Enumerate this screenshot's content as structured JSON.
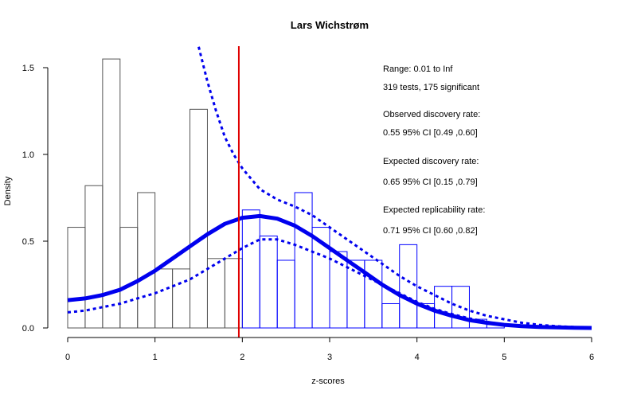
{
  "chart_data": {
    "type": "histogram",
    "title": "Lars Wichstrøm",
    "xlabel": "z-scores",
    "ylabel": "Density",
    "xlim": [
      0,
      6
    ],
    "ylim": [
      0,
      1.6
    ],
    "x_ticks": [
      "0",
      "1",
      "2",
      "3",
      "4",
      "5",
      "6"
    ],
    "y_ticks": [
      "0.0",
      "0.5",
      "1.0",
      "1.5"
    ],
    "bin_width": 0.2,
    "significance_line": {
      "z": 1.96,
      "color": "#e00000"
    },
    "histogram": {
      "black_bins": [
        {
          "x0": 0.0,
          "h": 0.58
        },
        {
          "x0": 0.2,
          "h": 0.82
        },
        {
          "x0": 0.4,
          "h": 1.55
        },
        {
          "x0": 0.6,
          "h": 0.58
        },
        {
          "x0": 0.8,
          "h": 0.78
        },
        {
          "x0": 1.0,
          "h": 0.34
        },
        {
          "x0": 1.2,
          "h": 0.34
        },
        {
          "x0": 1.4,
          "h": 1.26
        },
        {
          "x0": 1.6,
          "h": 0.4
        },
        {
          "x0": 1.8,
          "h": 0.4
        }
      ],
      "blue_bins": [
        {
          "x0": 2.0,
          "h": 0.68
        },
        {
          "x0": 2.2,
          "h": 0.53
        },
        {
          "x0": 2.4,
          "h": 0.39
        },
        {
          "x0": 2.6,
          "h": 0.78
        },
        {
          "x0": 2.8,
          "h": 0.58
        },
        {
          "x0": 3.0,
          "h": 0.44
        },
        {
          "x0": 3.2,
          "h": 0.39
        },
        {
          "x0": 3.4,
          "h": 0.39
        },
        {
          "x0": 3.6,
          "h": 0.14
        },
        {
          "x0": 3.8,
          "h": 0.48
        },
        {
          "x0": 4.0,
          "h": 0.14
        },
        {
          "x0": 4.2,
          "h": 0.24
        },
        {
          "x0": 4.4,
          "h": 0.24
        },
        {
          "x0": 4.6,
          "h": 0.05
        },
        {
          "x0": 4.8,
          "h": 0.02
        }
      ],
      "black_color": "#555555",
      "blue_color": "#0000ff"
    },
    "curves": {
      "color": "#0000ee",
      "fitted": [
        [
          0,
          0.16
        ],
        [
          0.2,
          0.17
        ],
        [
          0.4,
          0.19
        ],
        [
          0.6,
          0.22
        ],
        [
          0.8,
          0.27
        ],
        [
          1.0,
          0.33
        ],
        [
          1.2,
          0.4
        ],
        [
          1.4,
          0.47
        ],
        [
          1.6,
          0.54
        ],
        [
          1.8,
          0.6
        ],
        [
          2.0,
          0.635
        ],
        [
          2.2,
          0.645
        ],
        [
          2.4,
          0.63
        ],
        [
          2.6,
          0.59
        ],
        [
          2.8,
          0.53
        ],
        [
          3.0,
          0.46
        ],
        [
          3.2,
          0.39
        ],
        [
          3.4,
          0.32
        ],
        [
          3.6,
          0.25
        ],
        [
          3.8,
          0.19
        ],
        [
          4.0,
          0.14
        ],
        [
          4.2,
          0.1
        ],
        [
          4.4,
          0.07
        ],
        [
          4.6,
          0.045
        ],
        [
          4.8,
          0.03
        ],
        [
          5.0,
          0.018
        ],
        [
          5.2,
          0.01
        ],
        [
          5.4,
          0.006
        ],
        [
          5.6,
          0.003
        ],
        [
          5.8,
          0.0015
        ],
        [
          6.0,
          0.0
        ]
      ],
      "lower_ci": [
        [
          0,
          0.09
        ],
        [
          0.2,
          0.1
        ],
        [
          0.4,
          0.12
        ],
        [
          0.6,
          0.14
        ],
        [
          0.8,
          0.17
        ],
        [
          1.0,
          0.2
        ],
        [
          1.2,
          0.24
        ],
        [
          1.4,
          0.28
        ],
        [
          1.6,
          0.34
        ],
        [
          1.8,
          0.4
        ],
        [
          2.0,
          0.46
        ],
        [
          2.2,
          0.51
        ],
        [
          2.4,
          0.51
        ],
        [
          2.6,
          0.48
        ],
        [
          2.8,
          0.44
        ],
        [
          3.0,
          0.4
        ],
        [
          3.2,
          0.35
        ],
        [
          3.4,
          0.3
        ],
        [
          3.6,
          0.25
        ],
        [
          3.8,
          0.2
        ],
        [
          4.0,
          0.15
        ],
        [
          4.2,
          0.11
        ],
        [
          4.4,
          0.08
        ],
        [
          4.6,
          0.055
        ],
        [
          4.8,
          0.035
        ],
        [
          5.0,
          0.02
        ],
        [
          5.2,
          0.012
        ],
        [
          5.4,
          0.006
        ],
        [
          5.6,
          0.003
        ],
        [
          5.8,
          0.001
        ],
        [
          6.0,
          0.0
        ]
      ],
      "upper_ci": [
        [
          1.5,
          1.62
        ],
        [
          1.6,
          1.42
        ],
        [
          1.7,
          1.25
        ],
        [
          1.8,
          1.1
        ],
        [
          1.9,
          1.0
        ],
        [
          2.0,
          0.92
        ],
        [
          2.2,
          0.8
        ],
        [
          2.4,
          0.74
        ],
        [
          2.6,
          0.7
        ],
        [
          2.8,
          0.65
        ],
        [
          3.0,
          0.58
        ],
        [
          3.2,
          0.51
        ],
        [
          3.4,
          0.44
        ],
        [
          3.6,
          0.37
        ],
        [
          3.8,
          0.3
        ],
        [
          4.0,
          0.24
        ],
        [
          4.2,
          0.19
        ],
        [
          4.4,
          0.14
        ],
        [
          4.6,
          0.1
        ],
        [
          4.8,
          0.07
        ],
        [
          5.0,
          0.05
        ],
        [
          5.2,
          0.03
        ],
        [
          5.4,
          0.018
        ],
        [
          5.6,
          0.01
        ],
        [
          5.8,
          0.005
        ],
        [
          6.0,
          0.0
        ]
      ]
    },
    "annotations": [
      "Range: 0.01 to Inf",
      "319 tests, 175 significant",
      "Observed discovery rate:",
      "0.55  95% CI [0.49 ,0.60]",
      "Expected discovery rate:",
      "0.65  95% CI [0.15 ,0.79]",
      "Expected replicability rate:",
      "0.71  95% CI [0.60 ,0.82]"
    ]
  }
}
